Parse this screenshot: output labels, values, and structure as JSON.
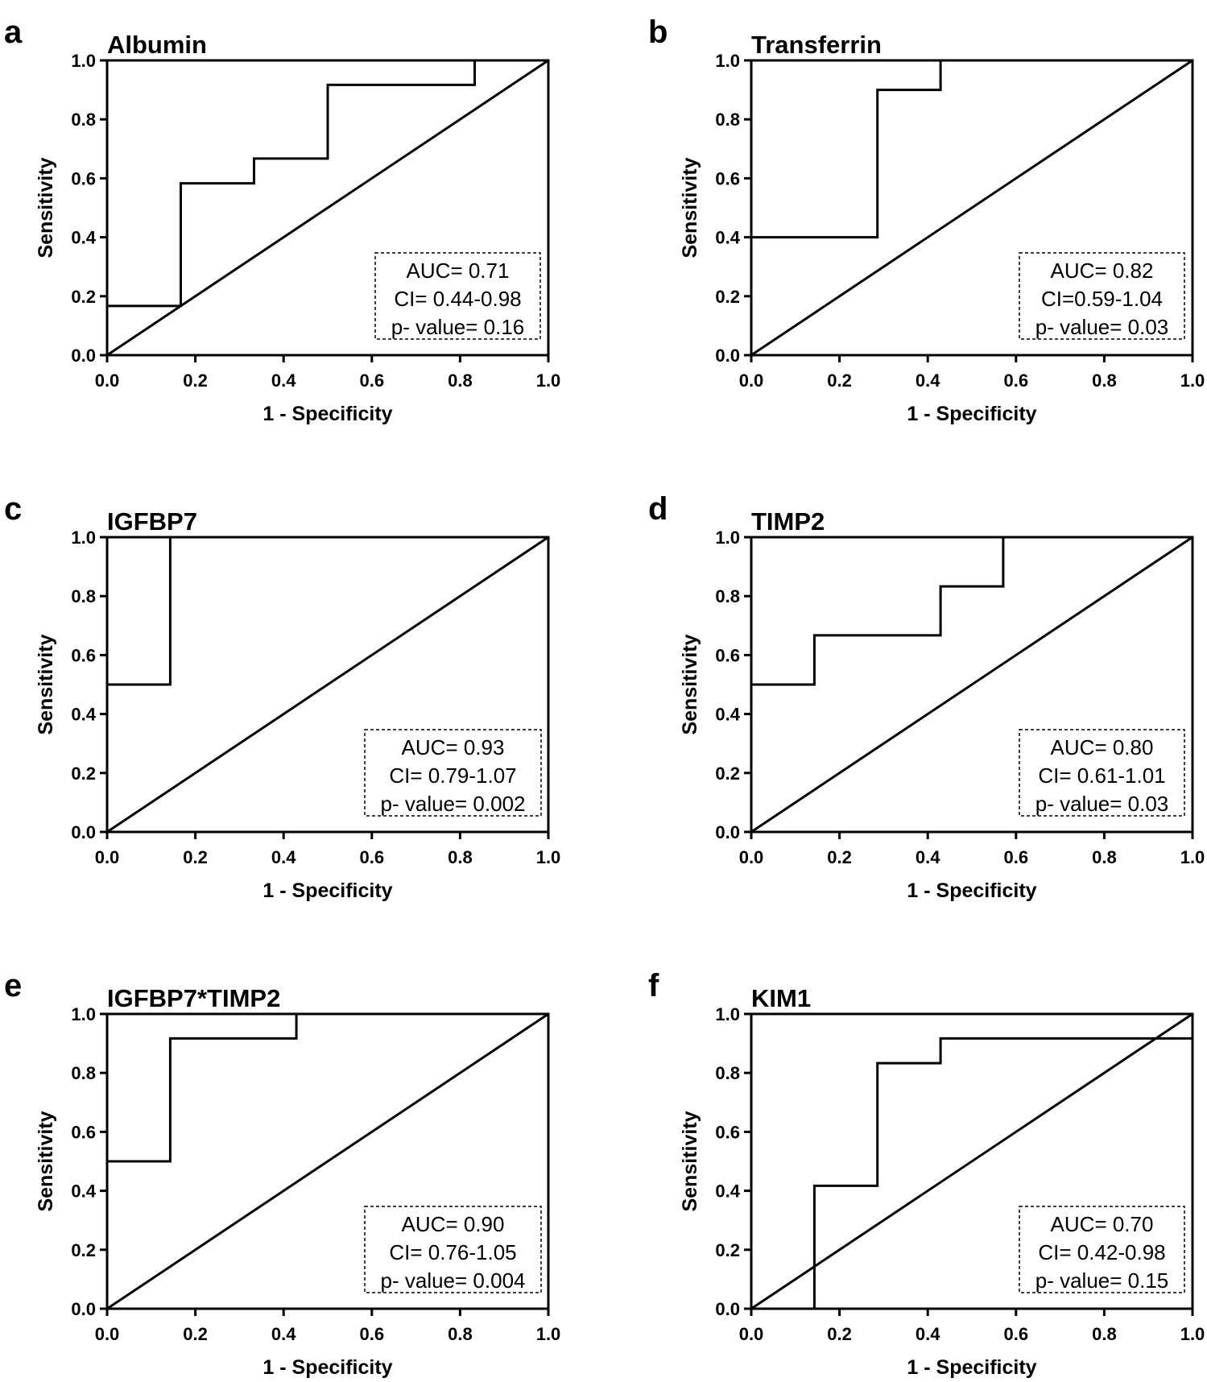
{
  "chart_data": [
    {
      "type": "line",
      "panel": "a",
      "title": "Albumin",
      "xlabel": "1 - Specificity",
      "ylabel": "Sensitivity",
      "xlim": [
        0,
        1
      ],
      "ylim": [
        0,
        1
      ],
      "xticks": [
        "0.0",
        "0.2",
        "0.4",
        "0.6",
        "0.8",
        "1.0"
      ],
      "yticks": [
        "0.0",
        "0.2",
        "0.4",
        "0.6",
        "0.8",
        "1.0"
      ],
      "series": [
        {
          "name": "ROC",
          "points": [
            [
              0,
              0.167
            ],
            [
              0.167,
              0.167
            ],
            [
              0.167,
              0.583
            ],
            [
              0.333,
              0.583
            ],
            [
              0.333,
              0.667
            ],
            [
              0.5,
              0.667
            ],
            [
              0.5,
              0.917
            ],
            [
              0.833,
              0.917
            ],
            [
              0.833,
              1
            ],
            [
              1,
              1
            ]
          ]
        },
        {
          "name": "Reference",
          "points": [
            [
              0,
              0
            ],
            [
              1,
              1
            ]
          ]
        }
      ],
      "annotation": [
        "AUC= 0.71",
        "CI= 0.44-0.98",
        "p- value= 0.16"
      ]
    },
    {
      "type": "line",
      "panel": "b",
      "title": "Transferrin",
      "xlabel": "1 - Specificity",
      "ylabel": "Sensitivity",
      "xlim": [
        0,
        1
      ],
      "ylim": [
        0,
        1
      ],
      "xticks": [
        "0.0",
        "0.2",
        "0.4",
        "0.6",
        "0.8",
        "1.0"
      ],
      "yticks": [
        "0.0",
        "0.2",
        "0.4",
        "0.6",
        "0.8",
        "1.0"
      ],
      "series": [
        {
          "name": "ROC",
          "points": [
            [
              0,
              0.4
            ],
            [
              0.286,
              0.4
            ],
            [
              0.286,
              0.9
            ],
            [
              0.429,
              0.9
            ],
            [
              0.429,
              1
            ],
            [
              1,
              1
            ]
          ]
        },
        {
          "name": "Reference",
          "points": [
            [
              0,
              0
            ],
            [
              1,
              1
            ]
          ]
        }
      ],
      "annotation": [
        "AUC= 0.82",
        "CI=0.59-1.04",
        "p- value= 0.03"
      ]
    },
    {
      "type": "line",
      "panel": "c",
      "title": "IGFBP7",
      "xlabel": "1 - Specificity",
      "ylabel": "Sensitivity",
      "xlim": [
        0,
        1
      ],
      "ylim": [
        0,
        1
      ],
      "xticks": [
        "0.0",
        "0.2",
        "0.4",
        "0.6",
        "0.8",
        "1.0"
      ],
      "yticks": [
        "0.0",
        "0.2",
        "0.4",
        "0.6",
        "0.8",
        "1.0"
      ],
      "series": [
        {
          "name": "ROC",
          "points": [
            [
              0,
              0.5
            ],
            [
              0.143,
              0.5
            ],
            [
              0.143,
              1
            ],
            [
              1,
              1
            ]
          ]
        },
        {
          "name": "Reference",
          "points": [
            [
              0,
              0
            ],
            [
              1,
              1
            ]
          ]
        }
      ],
      "annotation": [
        "AUC= 0.93",
        "CI= 0.79-1.07",
        "p- value= 0.002"
      ]
    },
    {
      "type": "line",
      "panel": "d",
      "title": "TIMP2",
      "xlabel": "1 - Specificity",
      "ylabel": "Sensitivity",
      "xlim": [
        0,
        1
      ],
      "ylim": [
        0,
        1
      ],
      "xticks": [
        "0.0",
        "0.2",
        "0.4",
        "0.6",
        "0.8",
        "1.0"
      ],
      "yticks": [
        "0.0",
        "0.2",
        "0.4",
        "0.6",
        "0.8",
        "1.0"
      ],
      "series": [
        {
          "name": "ROC",
          "points": [
            [
              0,
              0.5
            ],
            [
              0.143,
              0.5
            ],
            [
              0.143,
              0.667
            ],
            [
              0.429,
              0.667
            ],
            [
              0.429,
              0.833
            ],
            [
              0.571,
              0.833
            ],
            [
              0.571,
              1
            ],
            [
              1,
              1
            ]
          ]
        },
        {
          "name": "Reference",
          "points": [
            [
              0,
              0
            ],
            [
              1,
              1
            ]
          ]
        }
      ],
      "annotation": [
        "AUC= 0.80",
        "CI= 0.61-1.01",
        "p- value= 0.03"
      ]
    },
    {
      "type": "line",
      "panel": "e",
      "title": "IGFBP7*TIMP2",
      "xlabel": "1 - Specificity",
      "ylabel": "Sensitivity",
      "xlim": [
        0,
        1
      ],
      "ylim": [
        0,
        1
      ],
      "xticks": [
        "0.0",
        "0.2",
        "0.4",
        "0.6",
        "0.8",
        "1.0"
      ],
      "yticks": [
        "0.0",
        "0.2",
        "0.4",
        "0.6",
        "0.8",
        "1.0"
      ],
      "series": [
        {
          "name": "ROC",
          "points": [
            [
              0,
              0.5
            ],
            [
              0.143,
              0.5
            ],
            [
              0.143,
              0.917
            ],
            [
              0.429,
              0.917
            ],
            [
              0.429,
              1
            ],
            [
              1,
              1
            ]
          ]
        },
        {
          "name": "Reference",
          "points": [
            [
              0,
              0
            ],
            [
              1,
              1
            ]
          ]
        }
      ],
      "annotation": [
        "AUC= 0.90",
        "CI= 0.76-1.05",
        "p- value= 0.004"
      ]
    },
    {
      "type": "line",
      "panel": "f",
      "title": "KIM1",
      "xlabel": "1 - Specificity",
      "ylabel": "Sensitivity",
      "xlim": [
        0,
        1
      ],
      "ylim": [
        0,
        1
      ],
      "xticks": [
        "0.0",
        "0.2",
        "0.4",
        "0.6",
        "0.8",
        "1.0"
      ],
      "yticks": [
        "0.0",
        "0.2",
        "0.4",
        "0.6",
        "0.8",
        "1.0"
      ],
      "series": [
        {
          "name": "ROC",
          "points": [
            [
              0.143,
              0
            ],
            [
              0.143,
              0.417
            ],
            [
              0.286,
              0.417
            ],
            [
              0.286,
              0.833
            ],
            [
              0.429,
              0.833
            ],
            [
              0.429,
              0.917
            ],
            [
              1,
              0.917
            ]
          ]
        },
        {
          "name": "Reference",
          "points": [
            [
              0,
              0
            ],
            [
              1,
              1
            ]
          ]
        }
      ],
      "annotation": [
        "AUC= 0.70",
        "CI= 0.42-0.98",
        "p- value= 0.15"
      ]
    }
  ]
}
